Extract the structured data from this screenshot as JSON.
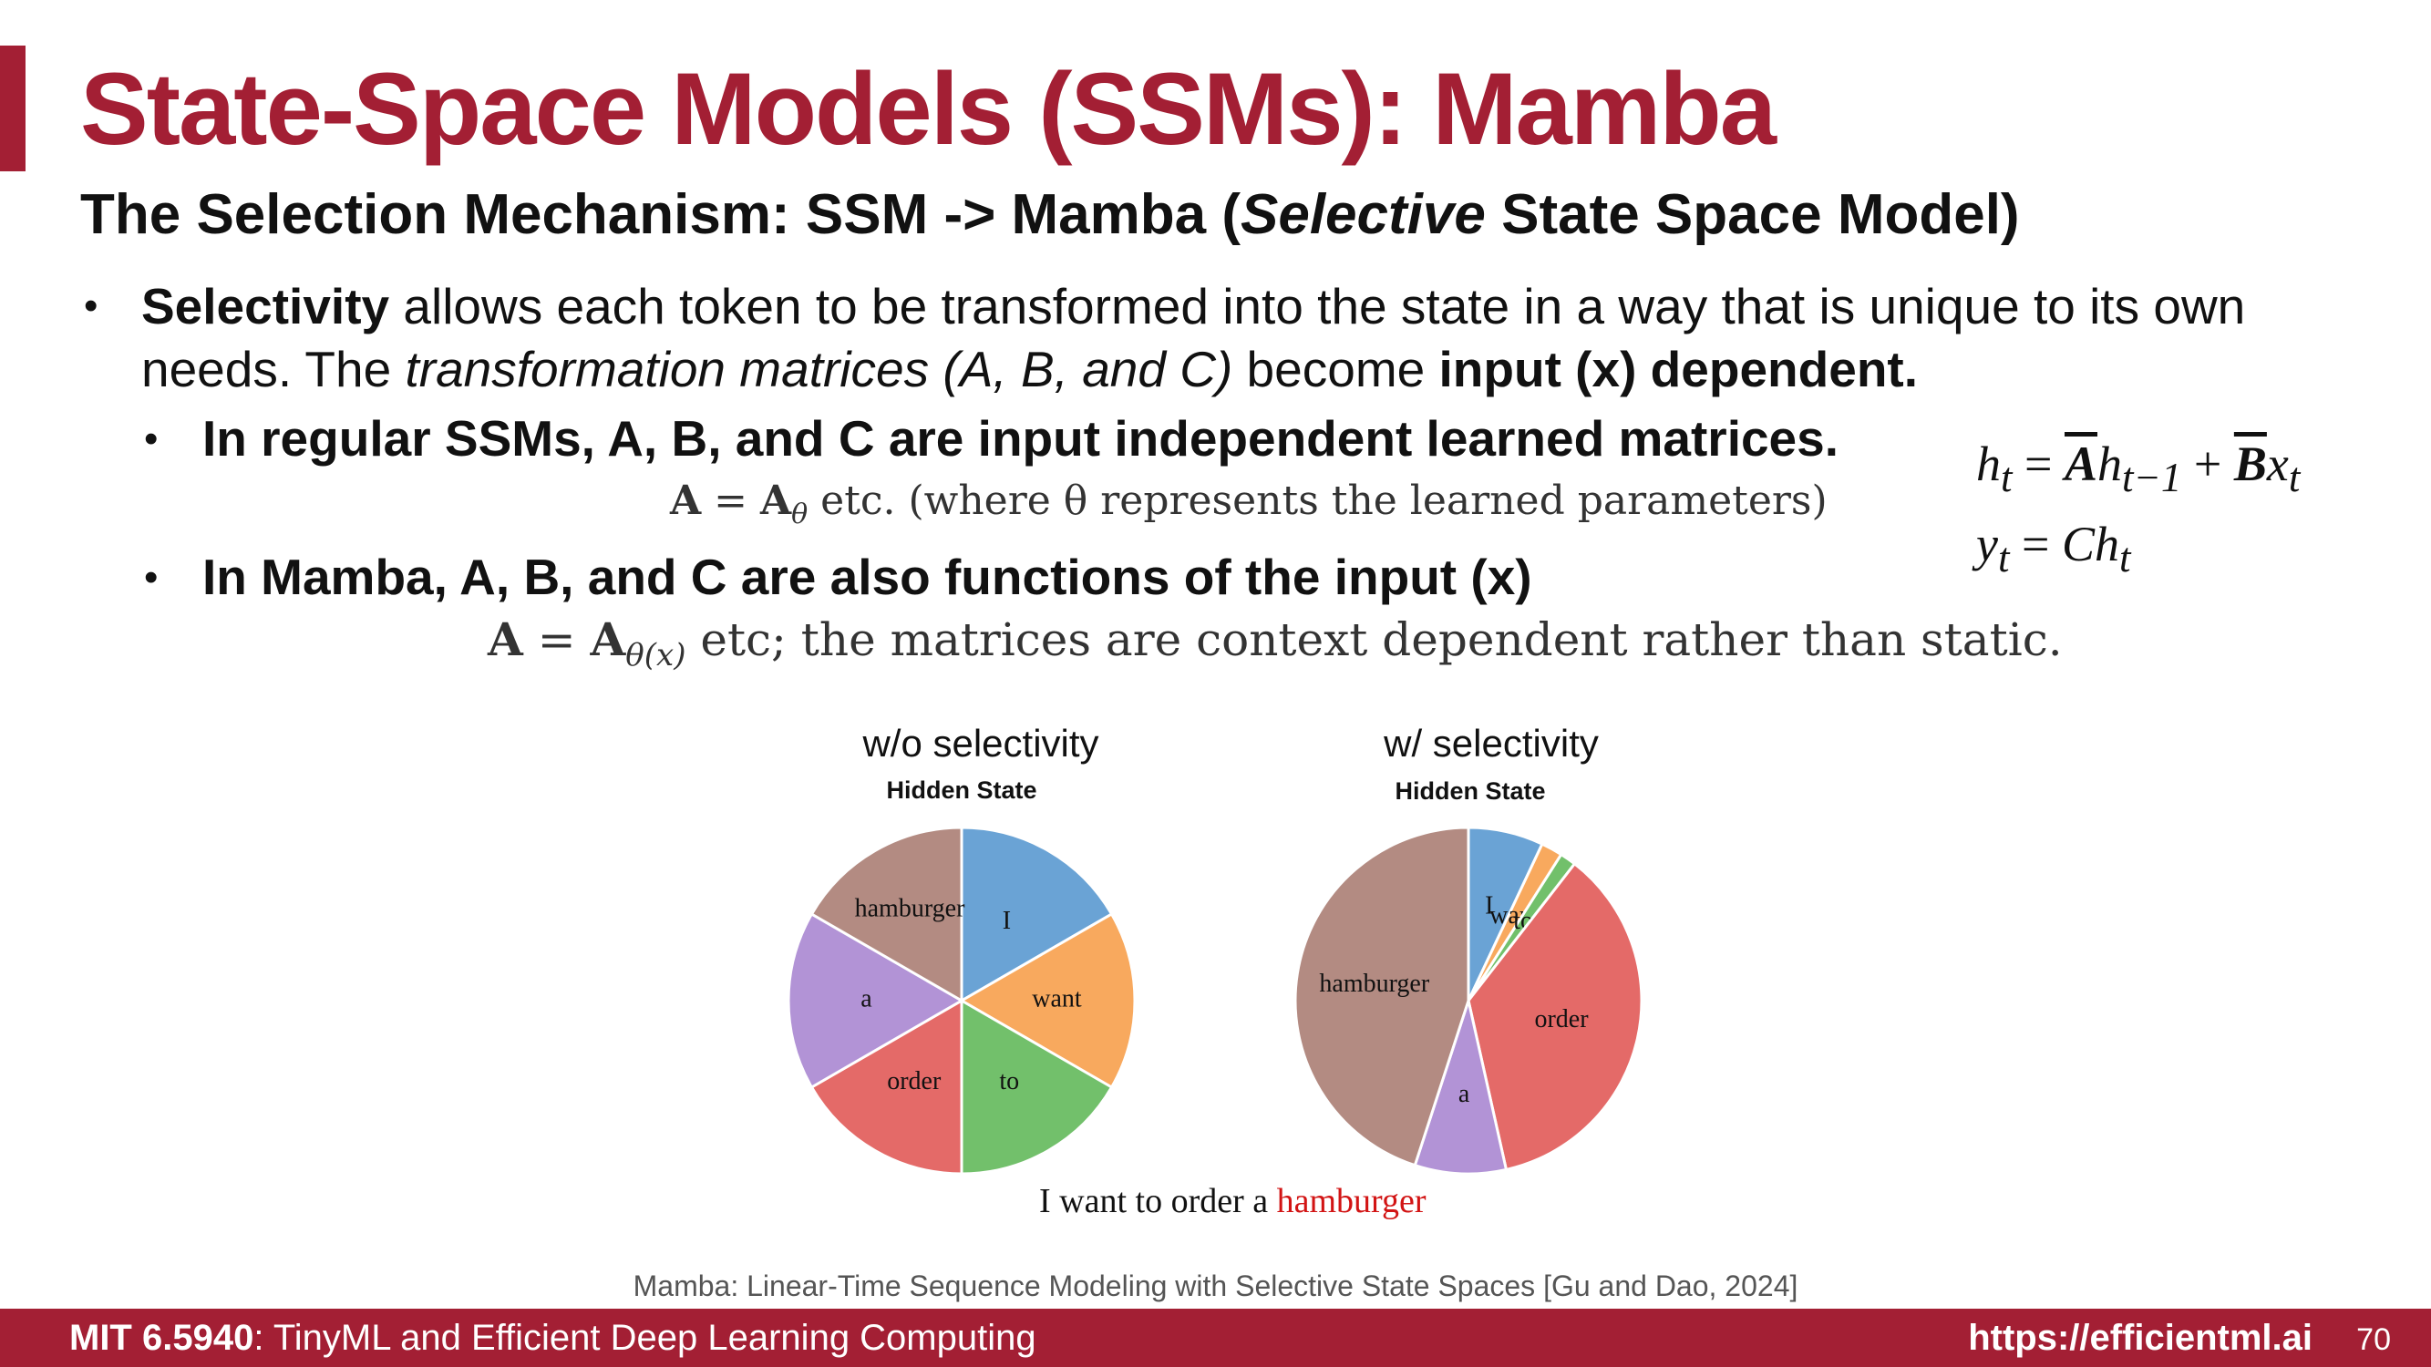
{
  "title": "State-Space Models (SSMs): Mamba",
  "subtitle": {
    "part1": "The Selection Mechanism: SSM -> Mamba (",
    "emph": "Selective",
    "part2": " State Space Model)"
  },
  "bullet1": {
    "bold": "Selectivity",
    "text1": " allows each token to be transformed into the state in a way that is unique to its own",
    "text2": "needs. The ",
    "italic": "transformation matrices (A, B, and C)",
    "text3": " become ",
    "bold2": "input (x) dependent."
  },
  "sub1": {
    "text": "In regular SSMs, A, B, and C are input independent learned matrices.",
    "math_lhs": "A",
    "math_eq": " = ",
    "math_rhs": "A",
    "math_sub": "θ",
    "math_tail": " etc. (where θ represents the learned parameters)"
  },
  "sub2": {
    "text": "In Mamba, A, B, and C are also functions of the input (x)",
    "math_lhs": "A",
    "math_eq": " = ",
    "math_rhs": "A",
    "math_sub": "θ(x)",
    "math_tail": " etc; the matrices are context dependent rather than static."
  },
  "equations": {
    "eq1": {
      "h": "h",
      "t": "t",
      "eq": " = ",
      "A": "A",
      "h2": "h",
      "tm1": "t−1",
      "plus": " + ",
      "B": "B",
      "x": "x",
      "t2": "t"
    },
    "eq2": {
      "y": "y",
      "t": "t",
      "eq": " = ",
      "C": "Ch",
      "t2": "t"
    }
  },
  "charts": {
    "left": {
      "title": "w/o selectivity",
      "subtitle": "Hidden State"
    },
    "right": {
      "title": "w/ selectivity",
      "subtitle": "Hidden State"
    }
  },
  "chart_data": [
    {
      "type": "pie",
      "title": "w/o selectivity",
      "subtitle": "Hidden State",
      "labels": [
        "I",
        "want",
        "to",
        "order",
        "a",
        "hamburger"
      ],
      "values": [
        16.67,
        16.67,
        16.67,
        16.67,
        16.67,
        16.67
      ],
      "colors": [
        "#6aa3d5",
        "#f8a95e",
        "#72c06b",
        "#e46a68",
        "#b293d6",
        "#b38b82"
      ]
    },
    {
      "type": "pie",
      "title": "w/ selectivity",
      "subtitle": "Hidden State",
      "labels": [
        "I",
        "want",
        "to",
        "order",
        "a",
        "hamburger"
      ],
      "values": [
        7,
        2,
        1.5,
        36,
        8.5,
        45
      ],
      "colors": [
        "#6aa3d5",
        "#f8a95e",
        "#72c06b",
        "#e46a68",
        "#b293d6",
        "#b38b82"
      ]
    }
  ],
  "sentence": {
    "text": "I want to order a ",
    "highlight": "hamburger"
  },
  "citation": "Mamba: Linear-Time Sequence Modeling with Selective State Spaces [Gu and Dao, 2024]",
  "footer": {
    "course_bold": "MIT 6.5940",
    "course_rest": ": TinyML and Efficient Deep Learning Computing",
    "url": "https://efficientml.ai",
    "page": "70"
  }
}
